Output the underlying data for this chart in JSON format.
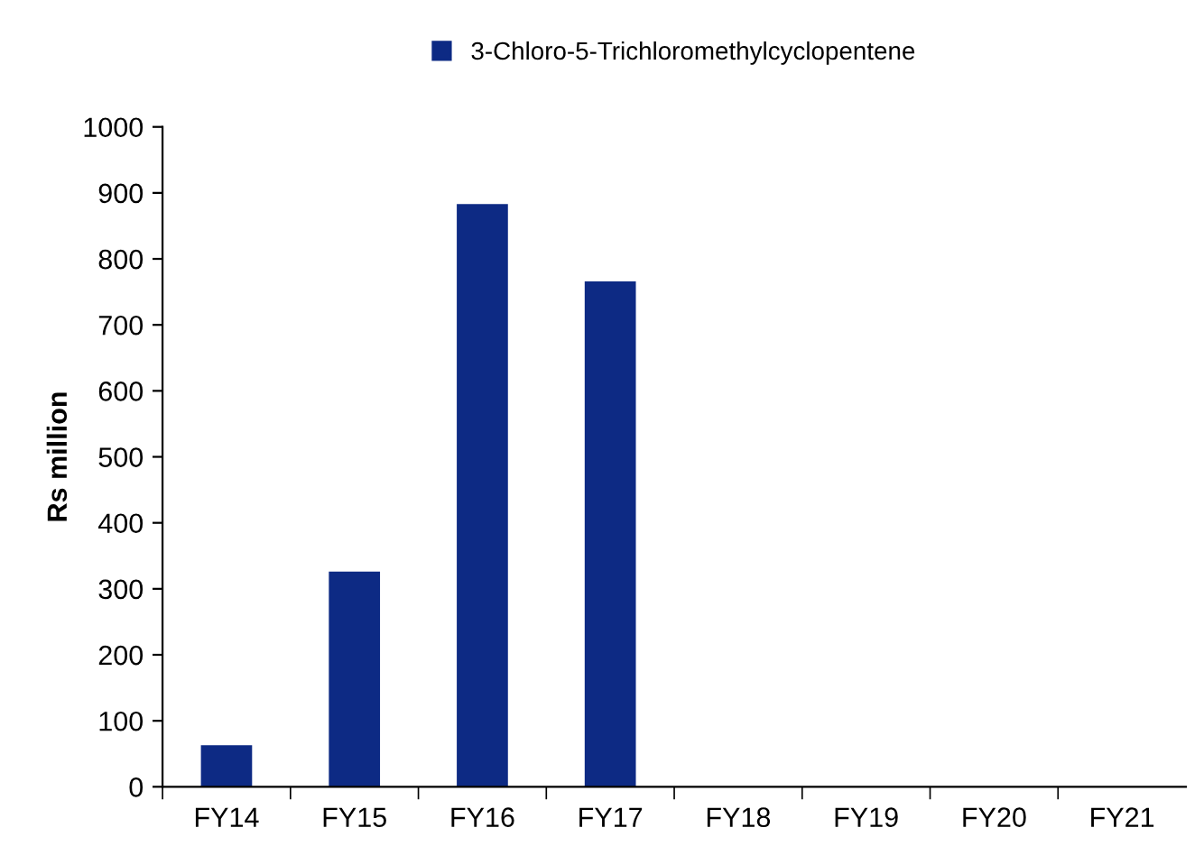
{
  "chart_data": {
    "type": "bar",
    "ylabel": "Rs million",
    "categories": [
      "FY14",
      "FY15",
      "FY16",
      "FY17",
      "FY18",
      "FY19",
      "FY20",
      "FY21"
    ],
    "series": [
      {
        "name": "3-Chloro-5-Trichloromethylcyclopentene",
        "color": "#0d2a84",
        "values": [
          63,
          326,
          883,
          766,
          null,
          null,
          null,
          null
        ]
      }
    ],
    "ylim": [
      0,
      1000
    ],
    "yticks": [
      0,
      100,
      200,
      300,
      400,
      500,
      600,
      700,
      800,
      900,
      1000
    ],
    "legend": "top",
    "grid": false
  }
}
